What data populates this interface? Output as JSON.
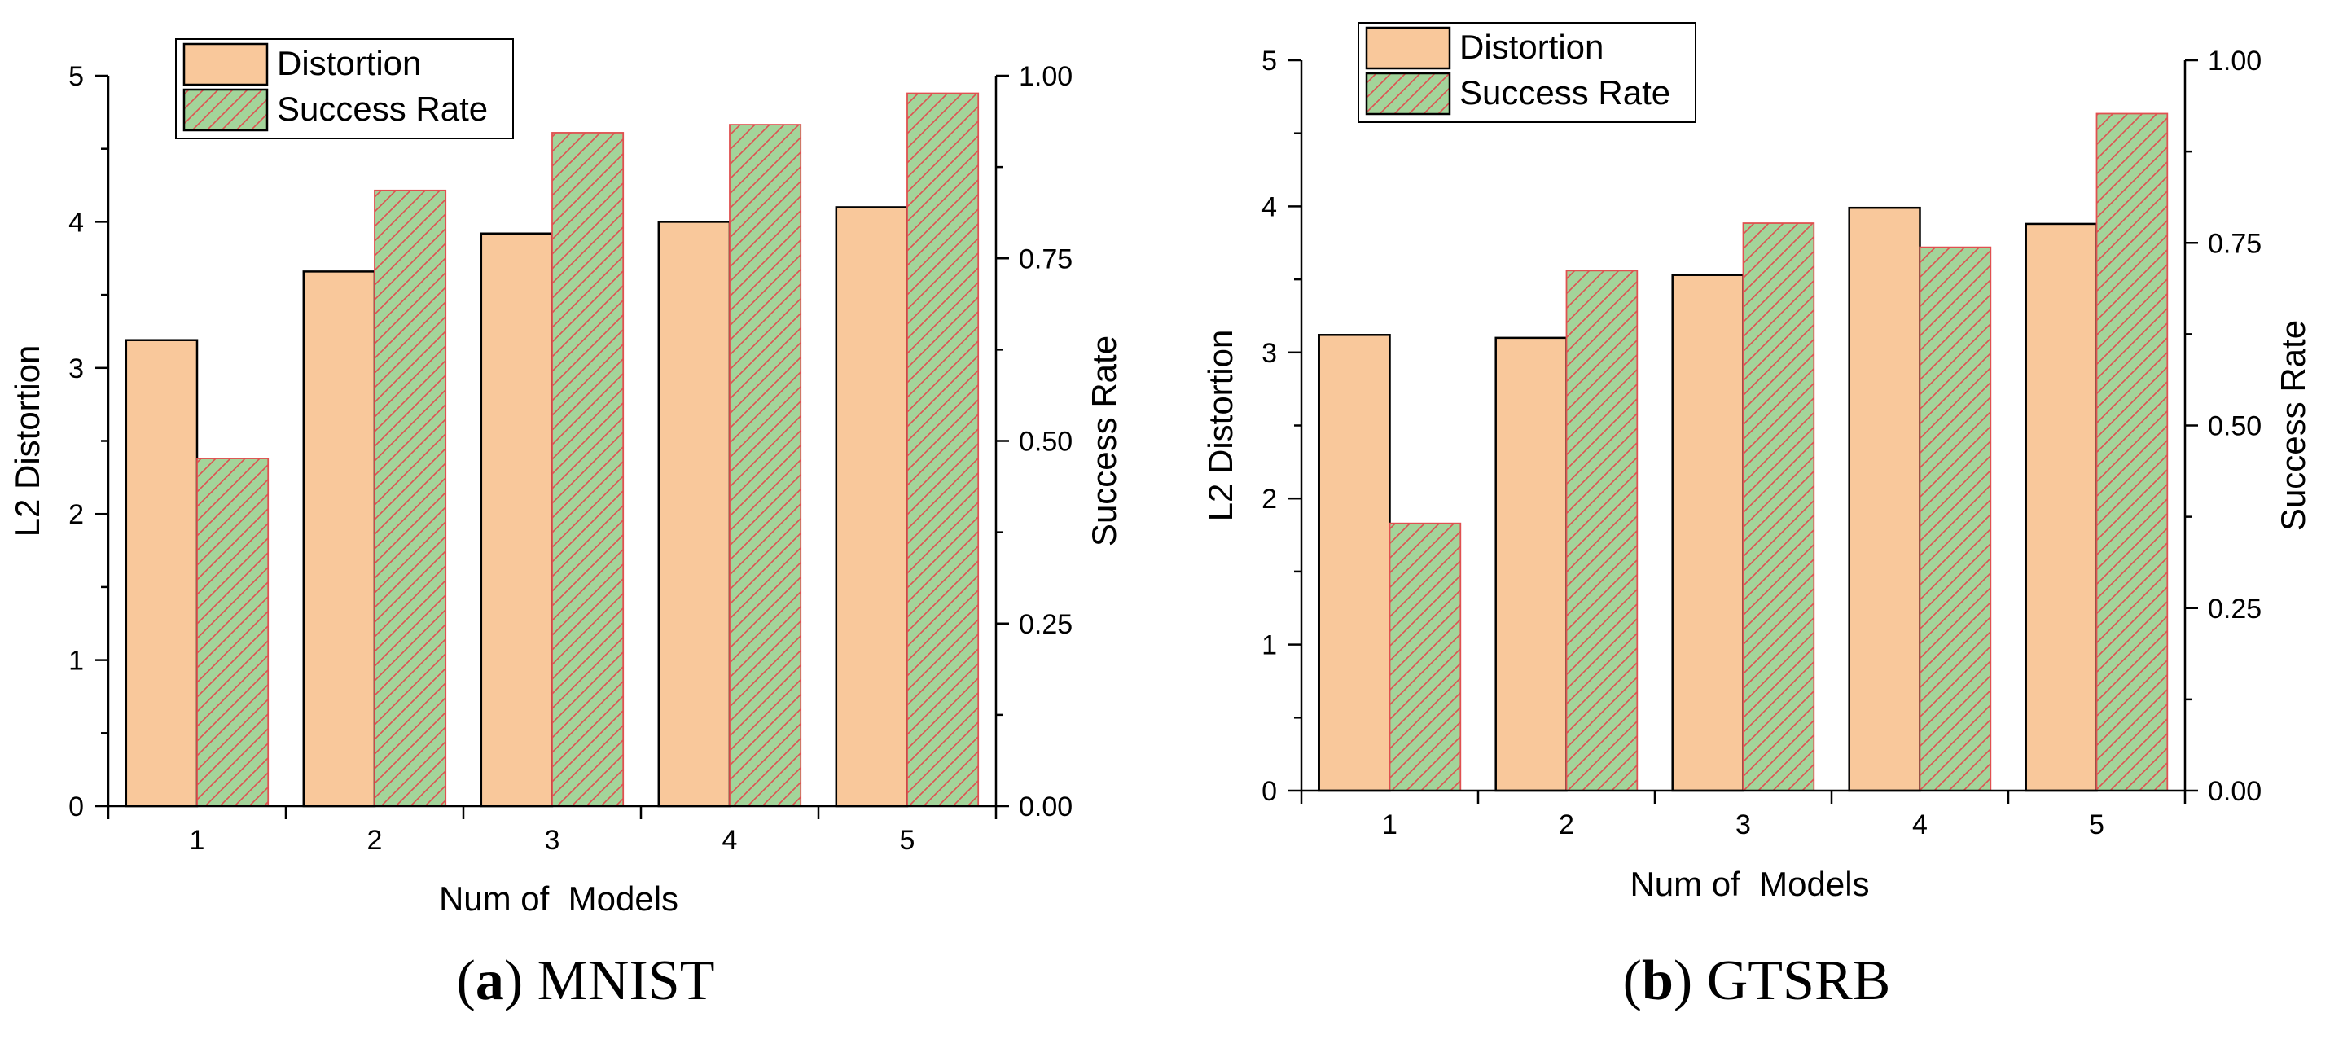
{
  "chart_data": [
    {
      "type": "bar",
      "caption_letter": "a",
      "caption_text": "MNIST",
      "categories": [
        "1",
        "2",
        "3",
        "4",
        "5"
      ],
      "xlabel": "Num of  Models",
      "ylabel": "L2 Distortion",
      "y2label": "Success Rate",
      "ylim": [
        0,
        5
      ],
      "y2lim": [
        0,
        1
      ],
      "yticks": [
        "0",
        "1",
        "2",
        "3",
        "4",
        "5"
      ],
      "y2ticks": [
        "0.00",
        "0.25",
        "0.50",
        "0.75",
        "1.00"
      ],
      "legend_position": "top-left",
      "series": [
        {
          "name": "Distortion",
          "axis": "left",
          "values": [
            3.19,
            3.66,
            3.92,
            4.0,
            4.1
          ],
          "color": "#f9c89b",
          "stroke": "#000000",
          "pattern": "none"
        },
        {
          "name": "Success Rate",
          "axis": "right",
          "values": [
            0.476,
            0.843,
            0.922,
            0.933,
            0.976
          ],
          "color": "#a3d49a",
          "stroke": "#e05050",
          "pattern": "hatch"
        }
      ]
    },
    {
      "type": "bar",
      "caption_letter": "b",
      "caption_text": "GTSRB",
      "categories": [
        "1",
        "2",
        "3",
        "4",
        "5"
      ],
      "xlabel": "Num of  Models",
      "ylabel": "L2 Distortion",
      "y2label": "Success Rate",
      "ylim": [
        0,
        5
      ],
      "y2lim": [
        0,
        1
      ],
      "yticks": [
        "0",
        "1",
        "2",
        "3",
        "4",
        "5"
      ],
      "y2ticks": [
        "0.00",
        "0.25",
        "0.50",
        "0.75",
        "1.00"
      ],
      "legend_position": "top-left",
      "series": [
        {
          "name": "Distortion",
          "axis": "left",
          "values": [
            3.12,
            3.1,
            3.53,
            3.99,
            3.88
          ],
          "color": "#f9c89b",
          "stroke": "#000000",
          "pattern": "none"
        },
        {
          "name": "Success Rate",
          "axis": "right",
          "values": [
            0.366,
            0.712,
            0.777,
            0.744,
            0.927
          ],
          "color": "#a3d49a",
          "stroke": "#e05050",
          "pattern": "hatch"
        }
      ]
    }
  ]
}
